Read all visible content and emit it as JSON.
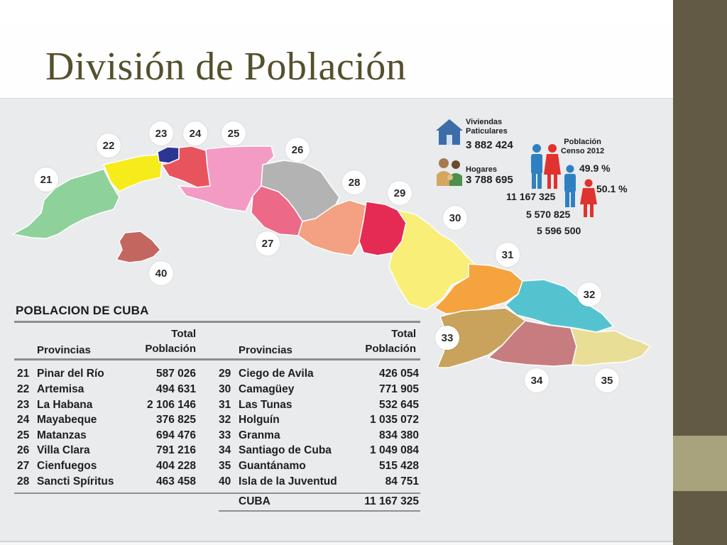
{
  "slide": {
    "title": "División de Población"
  },
  "map": {
    "labels": [
      "21",
      "22",
      "23",
      "24",
      "25",
      "26",
      "27",
      "28",
      "29",
      "30",
      "31",
      "32",
      "33",
      "34",
      "35",
      "40"
    ],
    "colors": {
      "p21": "#8fd19a",
      "p22": "#f6ec1c",
      "p23": "#2b3592",
      "p24": "#e8545e",
      "p25": "#f39bc4",
      "p26": "#b3b3b3",
      "p27": "#ec6a87",
      "p28": "#f3a083",
      "p29": "#e52b54",
      "p30": "#f8ee78",
      "p31": "#f5a33e",
      "p32": "#55c3cf",
      "p33": "#c9a25c",
      "p34": "#c77d80",
      "p35": "#e9de96",
      "p40": "#c46660"
    }
  },
  "census": {
    "viviendas_label_1": "Viviendas",
    "viviendas_label_2": "Paticulares",
    "viviendas_value": "3 882 424",
    "hogares_label": "Hogares",
    "hogares_value": "3 788 695",
    "poblacion_label_1": "Población",
    "poblacion_label_2": "Censo 2012",
    "male_pct": "49.9 %",
    "female_pct": "50.1 %",
    "total": "11 167 325",
    "male_total": "5 570 825",
    "female_total": "5 596 500"
  },
  "table": {
    "title": "POBLACION DE CUBA",
    "header_prov": "Provincias",
    "header_total_1": "Total",
    "header_total_2": "Población",
    "left_rows": [
      {
        "num": "21",
        "name": "Pinar del Río",
        "pop": "587 026"
      },
      {
        "num": "22",
        "name": "Artemisa",
        "pop": "494 631"
      },
      {
        "num": "23",
        "name": "La Habana",
        "pop": "2 106 146"
      },
      {
        "num": "24",
        "name": "Mayabeque",
        "pop": "376 825"
      },
      {
        "num": "25",
        "name": "Matanzas",
        "pop": "694 476"
      },
      {
        "num": "26",
        "name": "Villa Clara",
        "pop": "791 216"
      },
      {
        "num": "27",
        "name": "Cienfuegos",
        "pop": "404 228"
      },
      {
        "num": "28",
        "name": "Sancti Spíritus",
        "pop": "463 458"
      }
    ],
    "right_rows": [
      {
        "num": "29",
        "name": "Ciego de Avila",
        "pop": "426 054"
      },
      {
        "num": "30",
        "name": "Camagüey",
        "pop": "771 905"
      },
      {
        "num": "31",
        "name": "Las Tunas",
        "pop": "532 645"
      },
      {
        "num": "32",
        "name": "Holguín",
        "pop": "1 035 072"
      },
      {
        "num": "33",
        "name": "Granma",
        "pop": "834 380"
      },
      {
        "num": "34",
        "name": "Santiago de Cuba",
        "pop": "1 049 084"
      },
      {
        "num": "35",
        "name": "Guantánamo",
        "pop": "515 428"
      },
      {
        "num": "40",
        "name": "Isla de la Juventud",
        "pop": "84 751"
      }
    ],
    "total_label": "CUBA",
    "total_value": "11 167 325"
  }
}
